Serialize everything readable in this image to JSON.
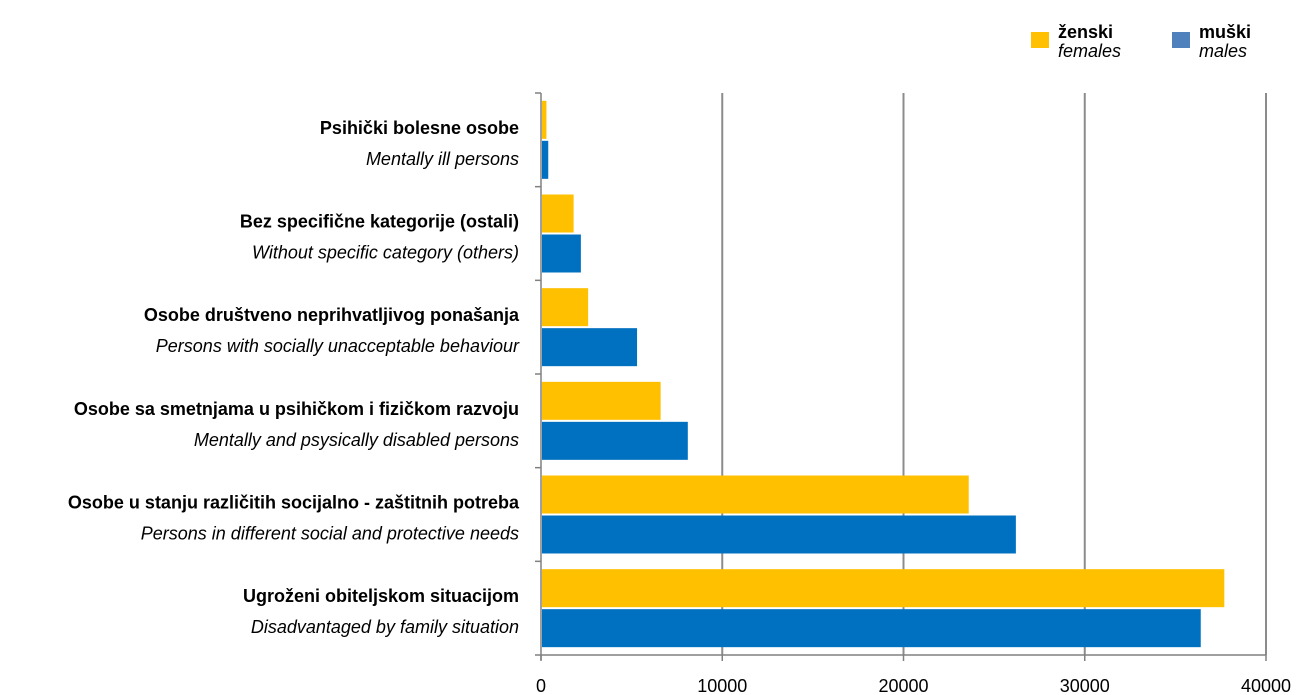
{
  "chart_data": {
    "type": "bar",
    "orientation": "horizontal",
    "categories": [
      {
        "label": "Psihički bolesne osobe",
        "label_en": "Mentally ill persons"
      },
      {
        "label": "Bez specifične kategorije (ostali)",
        "label_en": "Without specific category (others)"
      },
      {
        "label": "Osobe društveno neprihvatljivog ponašanja",
        "label_en": "Persons with socially unacceptable behaviour"
      },
      {
        "label": "Osobe sa smetnjama u psihičkom i fizičkom razvoju",
        "label_en": "Mentally and psysically disabled persons"
      },
      {
        "label": "Osobe u stanju različitih socijalno - zaštitnih potreba",
        "label_en": "Persons in different social and protective needs"
      },
      {
        "label": "Ugroženi obiteljskom situacijom",
        "label_en": "Disadvantaged by family situation"
      }
    ],
    "series": [
      {
        "name": "ženski",
        "name_en": "females",
        "color": "#FFC000",
        "values": [
          300,
          1800,
          2600,
          6600,
          23600,
          37700
        ]
      },
      {
        "name": "muški",
        "name_en": "males",
        "color": "#0070C0",
        "values": [
          400,
          2200,
          5300,
          8100,
          26200,
          36400
        ]
      }
    ],
    "xlim": [
      0,
      40000
    ],
    "xticks": [
      0,
      10000,
      20000,
      30000,
      40000
    ],
    "grid": true,
    "legend_position": "top-right",
    "legend_marker_colors": [
      "#FFC000",
      "#4F81BD"
    ],
    "axis_color": "#808080"
  }
}
